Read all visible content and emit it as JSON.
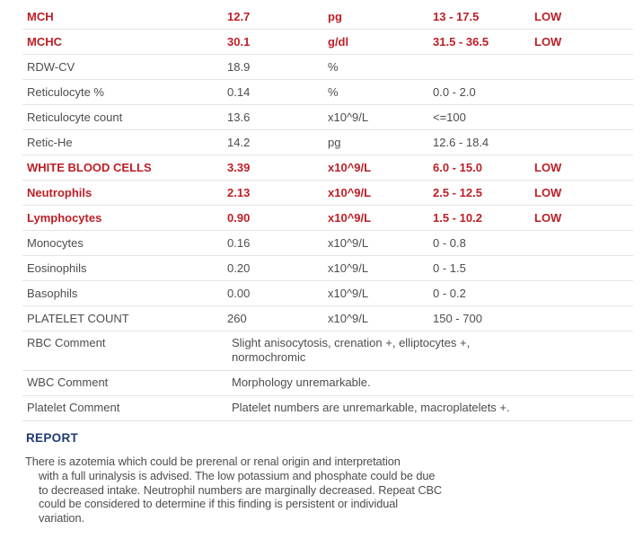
{
  "colors": {
    "abnormal": "#bc1f26",
    "normal": "#4d4d4f",
    "heading": "#1e3a6e",
    "divider": "#e4e4e4"
  },
  "table": {
    "rows": [
      {
        "name": "MCH",
        "value": "12.7",
        "unit": "pg",
        "range": "13 - 17.5",
        "flag": "LOW",
        "abnormal": true
      },
      {
        "name": "MCHC",
        "value": "30.1",
        "unit": "g/dl",
        "range": "31.5 - 36.5",
        "flag": "LOW",
        "abnormal": true
      },
      {
        "name": "RDW-CV",
        "value": "18.9",
        "unit": "%",
        "range": "",
        "flag": "",
        "abnormal": false
      },
      {
        "name": "Reticulocyte %",
        "value": "0.14",
        "unit": "%",
        "range": "0.0 - 2.0",
        "flag": "",
        "abnormal": false
      },
      {
        "name": "Reticulocyte count",
        "value": "13.6",
        "unit": "x10^9/L",
        "range": "<=100",
        "flag": "",
        "abnormal": false
      },
      {
        "name": "Retic-He",
        "value": "14.2",
        "unit": "pg",
        "range": "12.6 - 18.4",
        "flag": "",
        "abnormal": false
      },
      {
        "name": "WHITE BLOOD CELLS",
        "value": "3.39",
        "unit": "x10^9/L",
        "range": "6.0 - 15.0",
        "flag": "LOW",
        "abnormal": true
      },
      {
        "name": "Neutrophils",
        "value": "2.13",
        "unit": "x10^9/L",
        "range": "2.5 - 12.5",
        "flag": "LOW",
        "abnormal": true
      },
      {
        "name": "Lymphocytes",
        "value": "0.90",
        "unit": "x10^9/L",
        "range": "1.5 - 10.2",
        "flag": "LOW",
        "abnormal": true
      },
      {
        "name": "Monocytes",
        "value": "0.16",
        "unit": "x10^9/L",
        "range": "0 - 0.8",
        "flag": "",
        "abnormal": false
      },
      {
        "name": "Eosinophils",
        "value": "0.20",
        "unit": "x10^9/L",
        "range": "0 - 1.5",
        "flag": "",
        "abnormal": false
      },
      {
        "name": "Basophils",
        "value": "0.00",
        "unit": "x10^9/L",
        "range": "0 - 0.2",
        "flag": "",
        "abnormal": false
      },
      {
        "name": "PLATELET COUNT",
        "value": "260",
        "unit": "x10^9/L",
        "range": "150 - 700",
        "flag": "",
        "abnormal": false
      }
    ],
    "comment_rows": [
      {
        "label": "RBC Comment",
        "lines": [
          "Slight anisocytosis, crenation +, elliptocytes +,",
          "normochromic"
        ]
      },
      {
        "label": "WBC Comment",
        "lines": [
          "Morphology unremarkable."
        ]
      },
      {
        "label": "Platelet Comment",
        "lines": [
          "Platelet numbers are unremarkable, macroplatelets +."
        ]
      }
    ]
  },
  "report": {
    "heading": "REPORT",
    "lines": [
      "There is azotemia which could be prerenal or renal origin and interpretation",
      "with a full urinalysis is advised. The low potassium and phosphate could be due",
      "to decreased intake. Neutrophil numbers are marginally decreased. Repeat CBC",
      "could be considered to determine if this finding is persistent or individual",
      "variation."
    ]
  }
}
